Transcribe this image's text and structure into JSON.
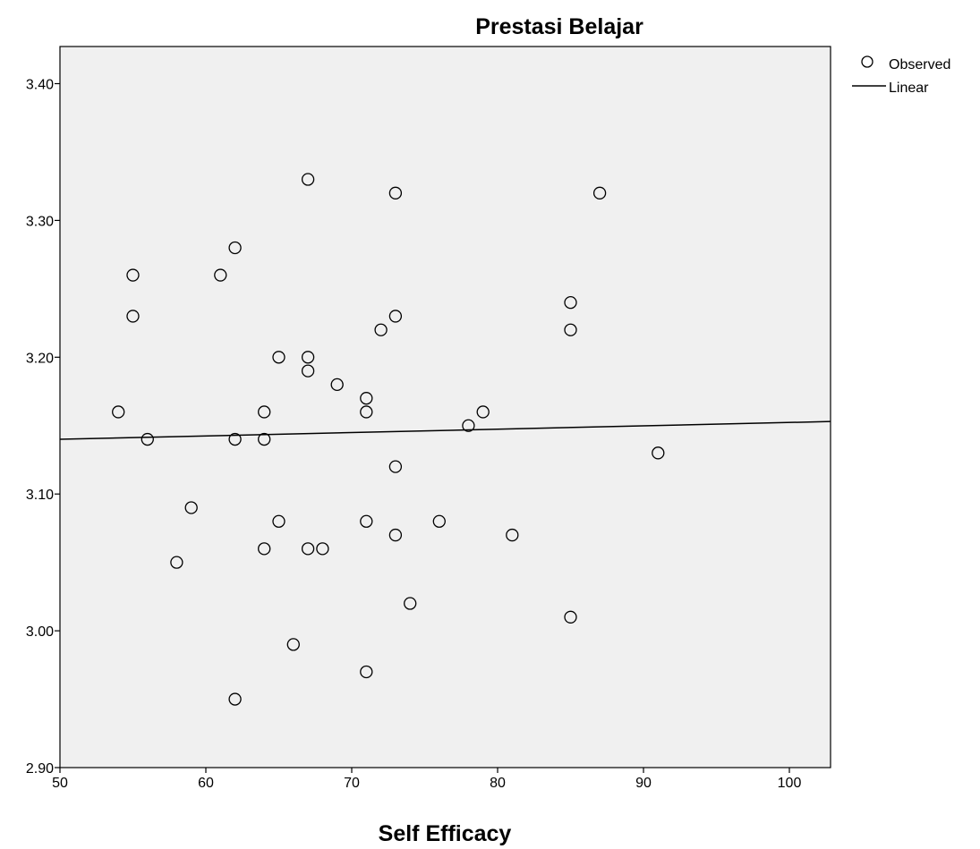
{
  "chart_data": {
    "type": "scatter",
    "title": "Prestasi Belajar",
    "xlabel": "Self Efficacy",
    "ylabel": "",
    "xlim": [
      50,
      103
    ],
    "ylim": [
      2.9,
      3.43
    ],
    "x_ticks": [
      50,
      60,
      70,
      80,
      90,
      100
    ],
    "y_ticks": [
      2.9,
      3.0,
      3.1,
      3.2,
      3.3,
      3.4
    ],
    "x_tick_labels": [
      "50",
      "60",
      "70",
      "80",
      "90",
      "100"
    ],
    "y_tick_labels": [
      "2.90",
      "3.00",
      "3.10",
      "3.20",
      "3.30",
      "3.40"
    ],
    "grid": false,
    "plot_background": "#f0f0f0",
    "legend": {
      "position": "top-right",
      "entries": [
        {
          "label": "Observed",
          "marker": "open-circle"
        },
        {
          "label": "Linear",
          "marker": "line"
        }
      ]
    },
    "series": [
      {
        "name": "Observed",
        "kind": "scatter",
        "points": [
          [
            54,
            3.16
          ],
          [
            55,
            3.26
          ],
          [
            55,
            3.23
          ],
          [
            56,
            3.14
          ],
          [
            58,
            3.05
          ],
          [
            59,
            3.09
          ],
          [
            61,
            3.26
          ],
          [
            62,
            3.28
          ],
          [
            62,
            3.14
          ],
          [
            62,
            2.95
          ],
          [
            64,
            3.16
          ],
          [
            64,
            3.14
          ],
          [
            64,
            3.06
          ],
          [
            65,
            3.2
          ],
          [
            65,
            3.08
          ],
          [
            66,
            2.99
          ],
          [
            67,
            3.33
          ],
          [
            67,
            3.2
          ],
          [
            67,
            3.19
          ],
          [
            67,
            3.06
          ],
          [
            68,
            3.06
          ],
          [
            69,
            3.18
          ],
          [
            71,
            3.17
          ],
          [
            71,
            3.16
          ],
          [
            71,
            3.08
          ],
          [
            71,
            2.97
          ],
          [
            72,
            3.22
          ],
          [
            73,
            3.32
          ],
          [
            73,
            3.23
          ],
          [
            73,
            3.12
          ],
          [
            73,
            3.07
          ],
          [
            74,
            3.02
          ],
          [
            76,
            3.08
          ],
          [
            78,
            3.15
          ],
          [
            79,
            3.16
          ],
          [
            81,
            3.07
          ],
          [
            85,
            3.24
          ],
          [
            85,
            3.22
          ],
          [
            85,
            3.01
          ],
          [
            87,
            3.32
          ],
          [
            91,
            3.13
          ]
        ]
      },
      {
        "name": "Linear",
        "kind": "line",
        "points": [
          [
            50,
            3.14
          ],
          [
            103,
            3.153
          ]
        ]
      }
    ]
  }
}
